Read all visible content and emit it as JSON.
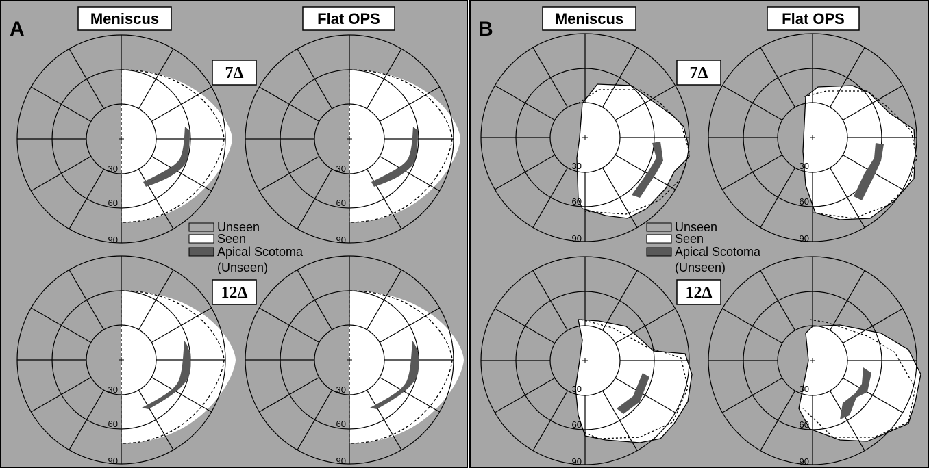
{
  "panels": [
    {
      "letter": "A",
      "col_labels": [
        "Meniscus",
        "Flat OPS"
      ],
      "row_labels": [
        "7Δ",
        "12Δ"
      ]
    },
    {
      "letter": "B",
      "col_labels": [
        "Meniscus",
        "Flat OPS"
      ],
      "row_labels": [
        "7Δ",
        "12Δ"
      ]
    }
  ],
  "ticks": [
    "30",
    "60",
    "90"
  ],
  "legend": {
    "items": [
      {
        "label": "Unseen",
        "color": "#a6a6a6"
      },
      {
        "label": "Seen",
        "color": "#ffffff"
      },
      {
        "label": "Apical Scotoma",
        "color": "#595959"
      }
    ],
    "note": "(Unseen)"
  },
  "colors": {
    "background": "#a6a6a6",
    "seen": "#ffffff",
    "scotoma": "#595959",
    "grid": "#000000"
  }
}
